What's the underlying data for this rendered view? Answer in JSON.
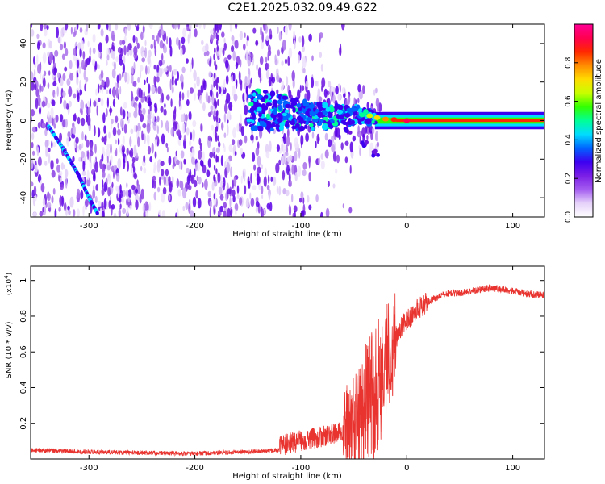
{
  "title": "C2E1.2025.032.09.49.G22",
  "chart_data": [
    {
      "type": "heatmap",
      "xlabel": "Height of straight line (km)",
      "ylabel": "Frequency (Hz)",
      "xlim": [
        -355,
        130
      ],
      "ylim": [
        -50,
        50
      ],
      "xticks": [
        -300,
        -200,
        -100,
        0,
        100
      ],
      "yticks": [
        -40,
        -20,
        0,
        20,
        40
      ],
      "colorbar": {
        "label": "Normalized spectral amplitude",
        "range": [
          0,
          1
        ],
        "ticks": [
          0.0,
          0.2,
          0.4,
          0.6,
          0.8
        ],
        "colormap": [
          "#ffffff",
          "#e6d2fa",
          "#a45cf0",
          "#7a1ee6",
          "#3c00f0",
          "#0064ff",
          "#00dcff",
          "#00ff96",
          "#32ff00",
          "#c8ff00",
          "#ffdc00",
          "#ff8c00",
          "#ff2800",
          "#ff0050",
          "#ff0096"
        ]
      },
      "features": [
        {
          "name": "diagonal streak",
          "points": [
            [
              -338,
              -3
            ],
            [
              -325,
              -14
            ],
            [
              -310,
              -28
            ],
            [
              -300,
              -40
            ],
            [
              -292,
              -48
            ]
          ]
        },
        {
          "name": "central ridge",
          "points": [
            [
              -180,
              8
            ],
            [
              -130,
              5
            ],
            [
              -100,
              3
            ],
            [
              -70,
              2
            ],
            [
              -45,
              3
            ],
            [
              -30,
              1
            ],
            [
              0,
              0
            ],
            [
              130,
              0
            ]
          ]
        },
        {
          "name": "lower branch",
          "points": [
            [
              -55,
              -5
            ],
            [
              -40,
              -12
            ],
            [
              -30,
              -17
            ]
          ]
        }
      ]
    },
    {
      "type": "line",
      "xlabel": "Height of straight line (km)",
      "ylabel": "SNR (10 * v/v)",
      "yunit": "(x10",
      "yunit_exp": "4",
      "xlim": [
        -355,
        130
      ],
      "ylim": [
        0,
        1.08
      ],
      "xticks": [
        -300,
        -200,
        -100,
        0,
        100
      ],
      "yticks": [
        0.2,
        0.4,
        0.6,
        0.8,
        1
      ],
      "color": "#e8332f",
      "series": [
        {
          "x": [
            -355,
            -300,
            -250,
            -200,
            -150,
            -120,
            -100,
            -80,
            -60,
            -50,
            -45,
            -40,
            -35,
            -30,
            -25,
            -20,
            -15,
            -10,
            -5,
            0,
            5,
            10,
            20,
            30,
            40,
            50,
            60,
            70,
            80,
            90,
            100,
            110,
            120,
            130
          ],
          "y": [
            0.05,
            0.04,
            0.035,
            0.03,
            0.04,
            0.05,
            0.08,
            0.1,
            0.13,
            0.15,
            0.2,
            0.25,
            0.3,
            0.35,
            0.42,
            0.5,
            0.6,
            0.68,
            0.74,
            0.78,
            0.8,
            0.84,
            0.88,
            0.91,
            0.93,
            0.93,
            0.94,
            0.95,
            0.96,
            0.95,
            0.94,
            0.93,
            0.92,
            0.92
          ]
        }
      ]
    }
  ]
}
